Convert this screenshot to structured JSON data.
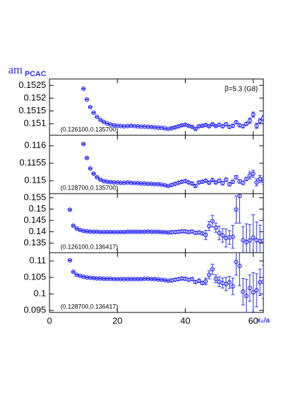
{
  "chart_data": [
    {
      "type": "errorbar",
      "y_label": "am",
      "y_label_sub": "PCAC",
      "annotation": "β=5.3 (G8)",
      "panel_label": "(0.126100,0.135700)",
      "color": "#2b2bff",
      "x": [
        10,
        11,
        12,
        13,
        14,
        15,
        16,
        17,
        18,
        19,
        20,
        21,
        22,
        23,
        24,
        25,
        26,
        27,
        28,
        29,
        30,
        31,
        32,
        33,
        34,
        35,
        36,
        37,
        38,
        39,
        40,
        41,
        42,
        43,
        44,
        45,
        46,
        47,
        48,
        49,
        50,
        51,
        52,
        53,
        54,
        55,
        56,
        57,
        58,
        59,
        60,
        61,
        62,
        63
      ],
      "values": [
        0.15237,
        0.15195,
        0.15165,
        0.15143,
        0.15127,
        0.15115,
        0.15107,
        0.15101,
        0.15097,
        0.15094,
        0.15092,
        0.15091,
        0.1509,
        0.15091,
        0.15092,
        0.15091,
        0.1509,
        0.15089,
        0.15089,
        0.15088,
        0.15087,
        0.15086,
        0.15085,
        0.15084,
        0.15082,
        0.1508,
        0.15083,
        0.15086,
        0.1509,
        0.15094,
        0.15096,
        0.15092,
        0.15088,
        0.1508,
        0.1509,
        0.15092,
        0.15095,
        0.1509,
        0.15098,
        0.15091,
        0.15096,
        0.1509,
        0.15098,
        0.15088,
        0.15092,
        0.15106,
        0.15094,
        0.1509,
        0.151,
        0.15112,
        0.15136,
        0.15092,
        0.1511,
        0.15122
      ],
      "errors": [
        1e-05,
        1e-05,
        1e-05,
        1e-05,
        1e-05,
        1e-05,
        1e-05,
        1e-05,
        1e-05,
        1e-05,
        1e-05,
        1e-05,
        1e-05,
        1e-05,
        1e-05,
        1e-05,
        1e-05,
        1e-05,
        1e-05,
        1e-05,
        1e-05,
        1e-05,
        1e-05,
        1e-05,
        1e-05,
        1e-05,
        3e-05,
        3e-05,
        3e-05,
        3e-05,
        3e-05,
        3e-05,
        3e-05,
        3e-05,
        3e-05,
        3e-05,
        3e-05,
        3e-05,
        3e-05,
        3e-05,
        5e-05,
        5e-05,
        5e-05,
        5e-05,
        5e-05,
        5e-05,
        5e-05,
        5e-05,
        5e-05,
        0.0001,
        0.0001,
        0.0001,
        0.0001,
        0.0001
      ],
      "xlim": [
        0,
        63
      ],
      "xticks": [
        0,
        20,
        40,
        60
      ],
      "ylim": [
        0.15055,
        0.15275
      ],
      "yticks": [
        0.151,
        0.1515,
        0.152,
        0.1525
      ]
    },
    {
      "type": "errorbar",
      "panel_label": "(0.128700,0.135700)",
      "color": "#2b2bff",
      "x": [
        10,
        11,
        12,
        13,
        14,
        15,
        16,
        17,
        18,
        19,
        20,
        21,
        22,
        23,
        24,
        25,
        26,
        27,
        28,
        29,
        30,
        31,
        32,
        33,
        34,
        35,
        36,
        37,
        38,
        39,
        40,
        41,
        42,
        43,
        44,
        45,
        46,
        47,
        48,
        49,
        50,
        51,
        52,
        53,
        54,
        55,
        56,
        57,
        58,
        59,
        60,
        61,
        62,
        63
      ],
      "values": [
        0.11605,
        0.11565,
        0.11535,
        0.1152,
        0.1151,
        0.11503,
        0.11499,
        0.11497,
        0.11496,
        0.11495,
        0.11495,
        0.11494,
        0.11494,
        0.11495,
        0.11494,
        0.11493,
        0.11493,
        0.11492,
        0.11492,
        0.11491,
        0.11491,
        0.1149,
        0.1149,
        0.11489,
        0.11487,
        0.11485,
        0.11488,
        0.11491,
        0.11494,
        0.11497,
        0.11499,
        0.11495,
        0.11492,
        0.11485,
        0.11495,
        0.11497,
        0.115,
        0.11494,
        0.11502,
        0.11495,
        0.115,
        0.11493,
        0.11503,
        0.1149,
        0.11497,
        0.1151,
        0.11498,
        0.11494,
        0.11505,
        0.11515,
        0.1152,
        0.11495,
        0.11505,
        0.115
      ],
      "errors": [
        1e-05,
        1e-05,
        1e-05,
        1e-05,
        1e-05,
        1e-05,
        1e-05,
        1e-05,
        1e-05,
        1e-05,
        1e-05,
        1e-05,
        1e-05,
        1e-05,
        1e-05,
        1e-05,
        1e-05,
        1e-05,
        1e-05,
        1e-05,
        1e-05,
        1e-05,
        1e-05,
        1e-05,
        1e-05,
        1e-05,
        3e-05,
        3e-05,
        3e-05,
        3e-05,
        3e-05,
        3e-05,
        3e-05,
        3e-05,
        3e-05,
        3e-05,
        3e-05,
        3e-05,
        3e-05,
        3e-05,
        5e-05,
        5e-05,
        5e-05,
        5e-05,
        5e-05,
        5e-05,
        5e-05,
        5e-05,
        5e-05,
        0.0001,
        0.0001,
        0.0001,
        0.0001,
        0.0001
      ],
      "xlim": [
        0,
        63
      ],
      "xticks": [
        0,
        20,
        40,
        60
      ],
      "ylim": [
        0.11463,
        0.1163
      ],
      "yticks": [
        0.115,
        0.1155,
        0.116
      ]
    },
    {
      "type": "errorbar",
      "panel_label": "(0.126100,0.136417)",
      "color": "#2b2bff",
      "x": [
        6,
        7,
        8,
        9,
        10,
        11,
        12,
        13,
        14,
        15,
        16,
        17,
        18,
        19,
        20,
        21,
        22,
        23,
        24,
        25,
        26,
        27,
        28,
        29,
        30,
        31,
        32,
        33,
        34,
        35,
        36,
        37,
        38,
        39,
        40,
        41,
        42,
        43,
        44,
        45,
        46,
        47,
        48,
        49,
        50,
        51,
        52,
        53,
        54,
        55,
        56,
        57,
        58,
        59,
        60,
        61,
        62,
        63
      ],
      "values": [
        0.1497,
        0.1427,
        0.1414,
        0.1408,
        0.1404,
        0.1402,
        0.1401,
        0.14,
        0.14,
        0.1399,
        0.1399,
        0.1399,
        0.1399,
        0.1399,
        0.1399,
        0.1399,
        0.1399,
        0.14,
        0.14,
        0.14,
        0.14,
        0.14,
        0.14,
        0.1401,
        0.14,
        0.14,
        0.14,
        0.1399,
        0.1398,
        0.1397,
        0.1398,
        0.1399,
        0.14,
        0.1402,
        0.1402,
        0.1399,
        0.1401,
        0.1395,
        0.1397,
        0.1393,
        0.1386,
        0.1425,
        0.1447,
        0.1418,
        0.1395,
        0.1384,
        0.1373,
        0.1375,
        0.1378,
        0.1498,
        0.1558,
        0.1363,
        0.1355,
        0.1362,
        0.1375,
        0.1363,
        0.1359,
        0.1361
      ],
      "errors": [
        0.0002,
        0.0002,
        0.0002,
        0.0002,
        0.0002,
        0.0002,
        0.0002,
        0.0002,
        0.0002,
        0.0002,
        0.0002,
        0.0002,
        0.0002,
        0.0002,
        0.0002,
        0.0002,
        0.0002,
        0.0002,
        0.0002,
        0.0002,
        0.0002,
        0.0002,
        0.0002,
        0.0002,
        0.0002,
        0.0002,
        0.0002,
        0.0002,
        0.0002,
        0.0002,
        0.0006,
        0.0006,
        0.0006,
        0.0006,
        0.0006,
        0.0006,
        0.0006,
        0.0006,
        0.0006,
        0.0006,
        0.002,
        0.002,
        0.0025,
        0.002,
        0.003,
        0.003,
        0.004,
        0.003,
        0.005,
        0.006,
        0.012,
        0.006,
        0.008,
        0.007,
        0.01,
        0.008,
        0.007,
        0.009
      ],
      "xlim": [
        0,
        63
      ],
      "xticks": [
        0,
        20,
        40,
        60
      ],
      "ylim": [
        0.1308,
        0.1568
      ],
      "yticks": [
        0.135,
        0.14,
        0.145,
        0.15,
        0.155
      ]
    },
    {
      "type": "errorbar",
      "panel_label": "(0.128700,0.136417)",
      "x_label": "x₀/a",
      "color": "#2b2bff",
      "x": [
        6,
        7,
        8,
        9,
        10,
        11,
        12,
        13,
        14,
        15,
        16,
        17,
        18,
        19,
        20,
        21,
        22,
        23,
        24,
        25,
        26,
        27,
        28,
        29,
        30,
        31,
        32,
        33,
        34,
        35,
        36,
        37,
        38,
        39,
        40,
        41,
        42,
        43,
        44,
        45,
        46,
        47,
        48,
        49,
        50,
        51,
        52,
        53,
        54,
        55,
        56,
        57,
        58,
        59,
        60,
        61,
        62,
        63
      ],
      "values": [
        0.1102,
        0.1067,
        0.1058,
        0.1055,
        0.1052,
        0.105,
        0.1049,
        0.1048,
        0.1047,
        0.1047,
        0.1046,
        0.1046,
        0.1046,
        0.1045,
        0.1045,
        0.1045,
        0.1045,
        0.1045,
        0.1045,
        0.1045,
        0.1045,
        0.1045,
        0.1046,
        0.1046,
        0.1045,
        0.1045,
        0.1044,
        0.1043,
        0.1042,
        0.104,
        0.1041,
        0.1043,
        0.1045,
        0.1047,
        0.1046,
        0.1043,
        0.1045,
        0.1036,
        0.104,
        0.1033,
        0.1038,
        0.1058,
        0.1075,
        0.1046,
        0.1037,
        0.1033,
        0.103,
        0.1035,
        0.1023,
        0.1097,
        0.1085,
        0.1007,
        0.0994,
        0.1018,
        0.1005,
        0.1011,
        0.1035,
        0.1037
      ],
      "errors": [
        0.0001,
        0.0001,
        0.0001,
        0.0001,
        0.0001,
        0.0001,
        0.0001,
        0.0001,
        0.0001,
        0.0001,
        0.0001,
        0.0001,
        0.0001,
        0.0001,
        0.0001,
        0.0001,
        0.0001,
        0.0001,
        0.0001,
        0.0001,
        0.0001,
        0.0001,
        0.0001,
        0.0001,
        0.0001,
        0.0001,
        0.0001,
        0.0001,
        0.0001,
        0.0001,
        0.0004,
        0.0004,
        0.0004,
        0.0004,
        0.0004,
        0.0004,
        0.0004,
        0.0004,
        0.0004,
        0.0004,
        0.001,
        0.0012,
        0.0015,
        0.0012,
        0.0015,
        0.0015,
        0.002,
        0.0018,
        0.0025,
        0.004,
        0.006,
        0.004,
        0.005,
        0.004,
        0.006,
        0.005,
        0.004,
        0.005
      ],
      "xlim": [
        0,
        63
      ],
      "xticks": [
        0,
        20,
        40,
        60
      ],
      "ylim": [
        0.0944,
        0.1125
      ],
      "yticks": [
        0.095,
        0.1,
        0.105,
        0.11
      ]
    }
  ]
}
